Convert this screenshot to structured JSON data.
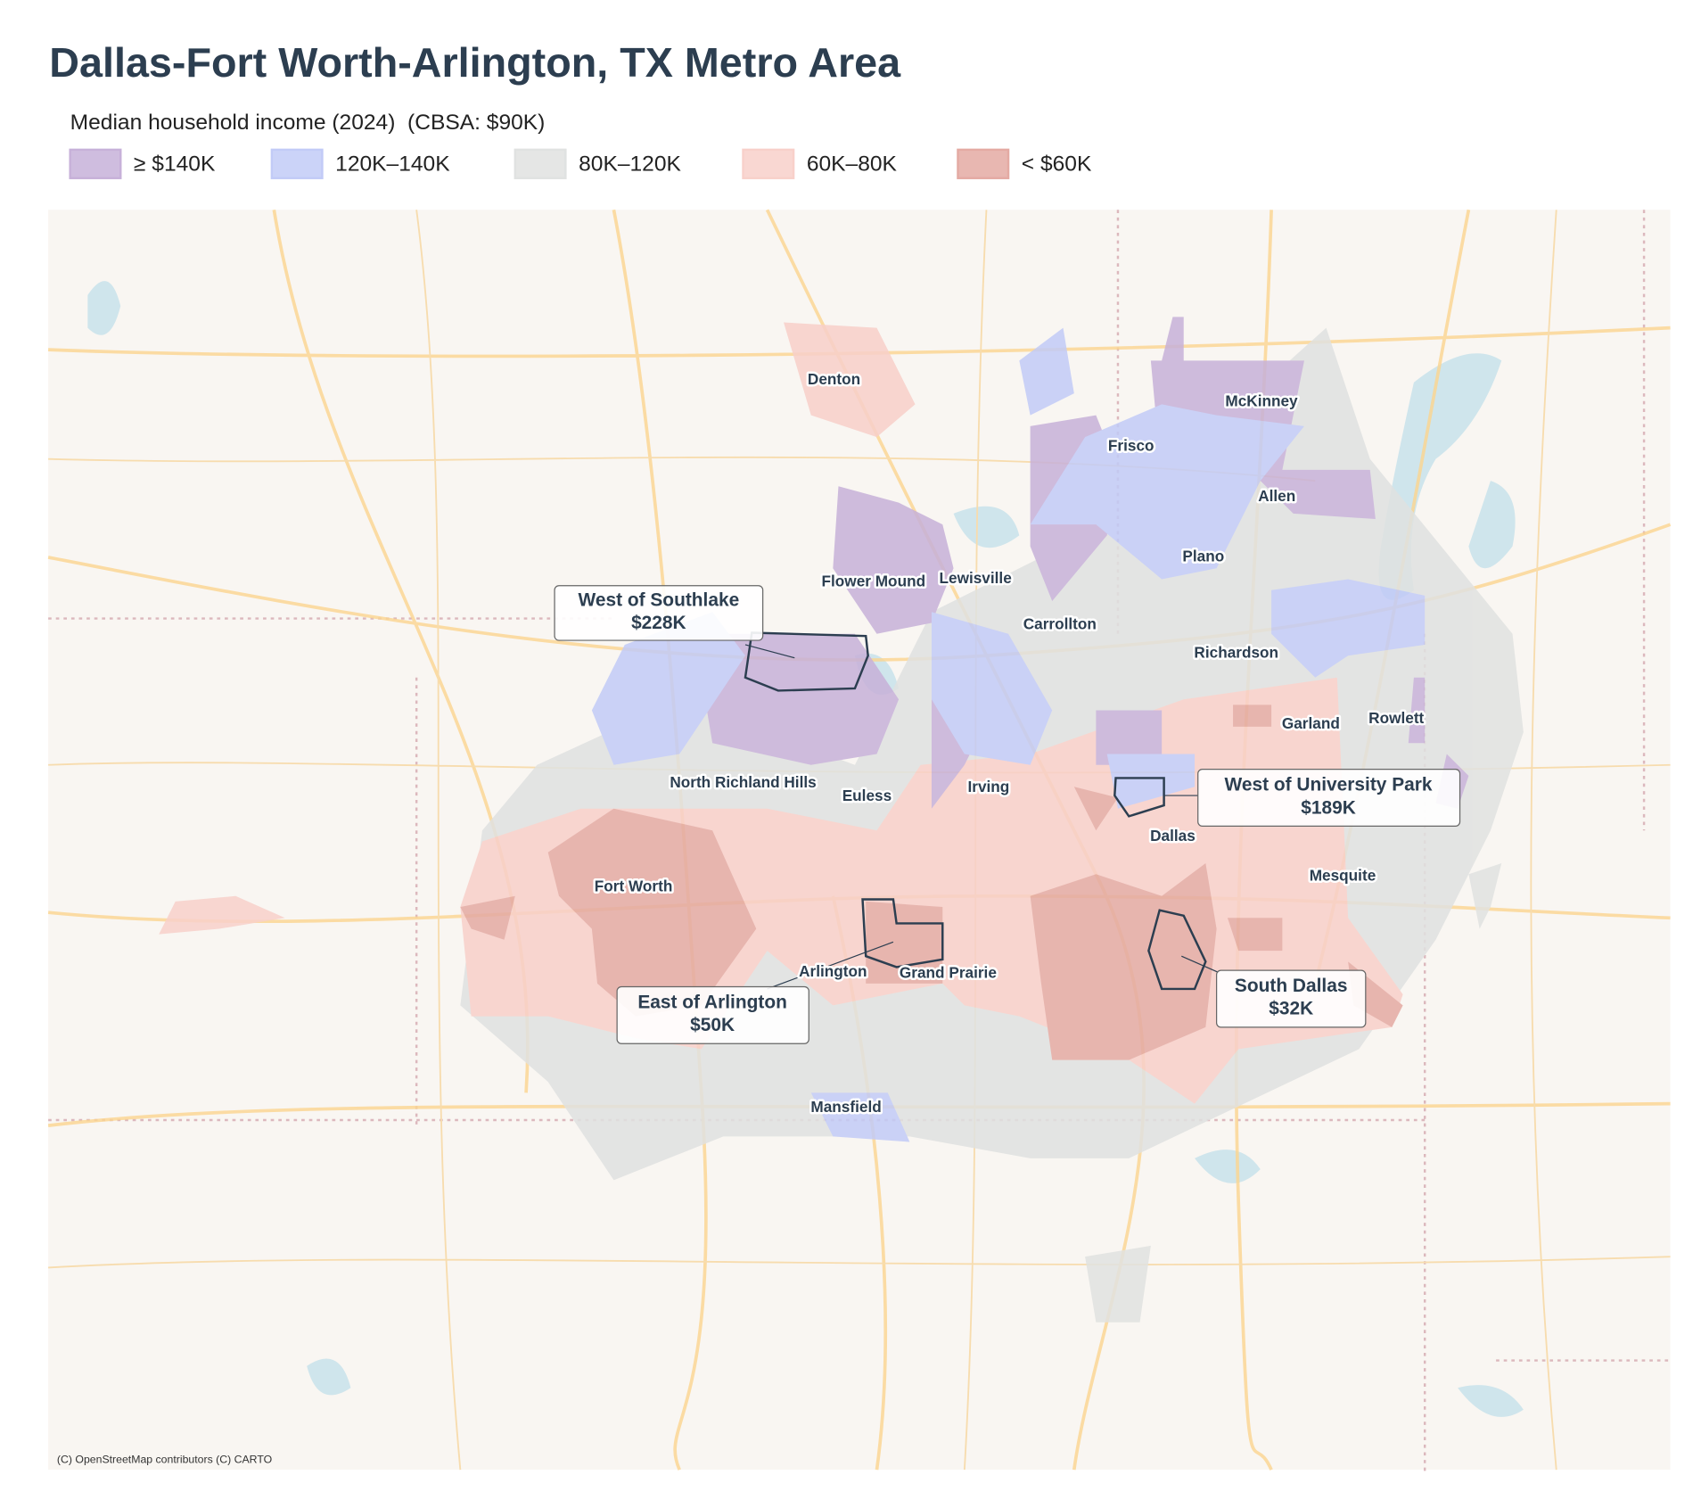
{
  "title": "Dallas-Fort Worth-Arlington, TX Metro Area",
  "legend": {
    "title": "Median household income (2024)  (CBSA: $90K)",
    "items": [
      {
        "label": "≥ $140K",
        "color": "#c7b1d9"
      },
      {
        "label": "120K–140K",
        "color": "#c2cbf7"
      },
      {
        "label": "80K–120K",
        "color": "#e0e2e1"
      },
      {
        "label": "60K–80K",
        "color": "#f8d0ca"
      },
      {
        "label": "< $60K",
        "color": "#e4aaa3"
      }
    ]
  },
  "places": [
    "Denton",
    "McKinney",
    "Frisco",
    "Allen",
    "Plano",
    "Flower Mound",
    "Lewisville",
    "Carrollton",
    "Richardson",
    "Garland",
    "Rowlett",
    "North Richland Hills",
    "Euless",
    "Irving",
    "Dallas",
    "Mesquite",
    "Fort Worth",
    "Arlington",
    "Grand Prairie",
    "Mansfield"
  ],
  "callouts": [
    {
      "name": "West of Southlake",
      "value": "$228K"
    },
    {
      "name": "West of University Park",
      "value": "$189K"
    },
    {
      "name": "East of Arlington",
      "value": "$50K"
    },
    {
      "name": "South Dallas",
      "value": "$32K"
    }
  ],
  "attribution": "(C) OpenStreetMap contributors (C) CARTO"
}
